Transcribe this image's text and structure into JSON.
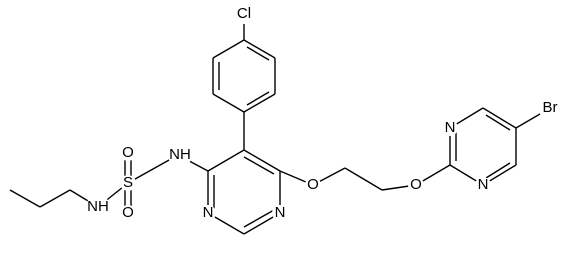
{
  "atoms": [
    {
      "label": "Cl"
    },
    {
      "label": "Br"
    },
    {
      "label": "N"
    },
    {
      "label": "N"
    },
    {
      "label": "N"
    },
    {
      "label": "N"
    },
    {
      "label": "O"
    },
    {
      "label": "O"
    },
    {
      "label": "O"
    },
    {
      "label": "O"
    },
    {
      "label": "S"
    },
    {
      "label": "NH"
    },
    {
      "label": "NH"
    }
  ]
}
